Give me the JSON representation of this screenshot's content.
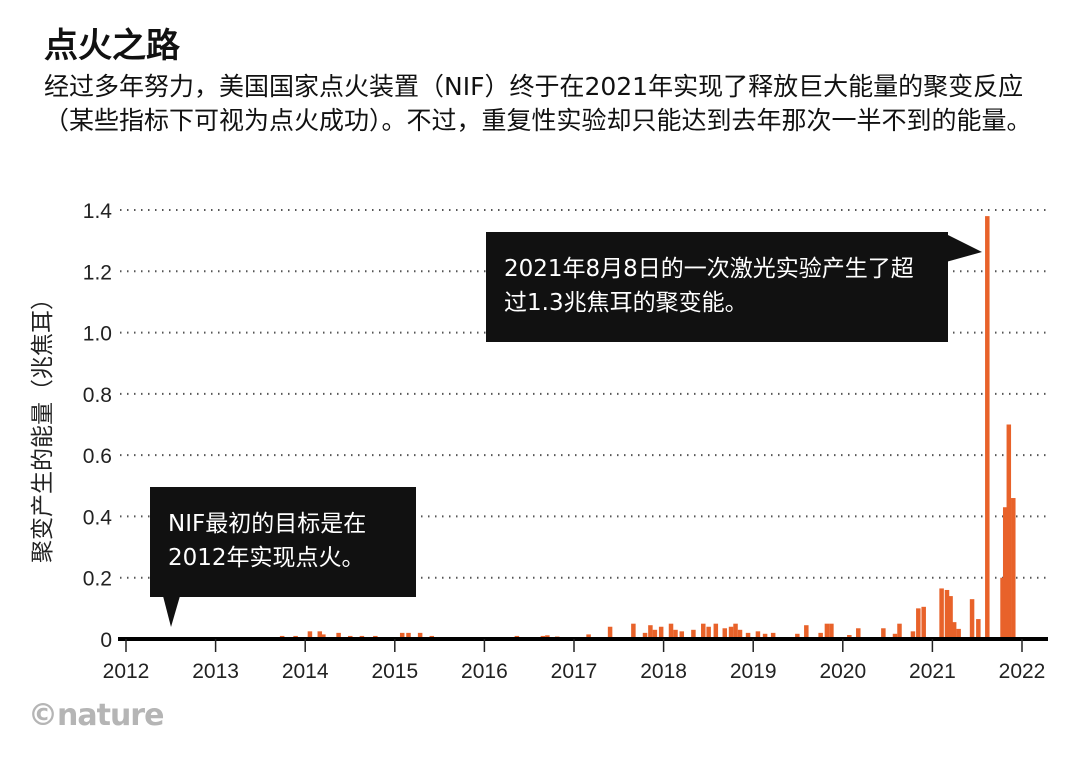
{
  "title": "点火之路",
  "subtitle": "经过多年努力，美国国家点火装置（NIF）终于在2021年实现了释放巨大能量的聚变反应（某些指标下可视为点火成功）。不过，重复性实验却只能达到去年那次一半不到的能量。",
  "logo": "©nature",
  "colors": {
    "bar": "#e8622a",
    "callout": "#111111",
    "grid": "#555555"
  },
  "chart_data": {
    "type": "bar",
    "title": "点火之路",
    "xlabel": "",
    "ylabel": "聚变产生的能量（兆焦耳）",
    "xlim": [
      2012,
      2022.3
    ],
    "ylim": [
      0,
      1.4
    ],
    "grid": "horizontal dotted",
    "x_ticks": [
      "2012",
      "2013",
      "2014",
      "2015",
      "2016",
      "2017",
      "2018",
      "2019",
      "2020",
      "2021",
      "2022"
    ],
    "y_ticks": [
      "0",
      "0.2",
      "0.4",
      "0.6",
      "0.8",
      "1.0",
      "1.2",
      "1.4"
    ],
    "x": [
      2013.74,
      2013.89,
      2014.05,
      2014.16,
      2014.2,
      2014.37,
      2014.5,
      2014.63,
      2014.78,
      2015.08,
      2015.15,
      2015.28,
      2015.41,
      2016.36,
      2016.65,
      2016.7,
      2016.81,
      2017.16,
      2017.4,
      2017.66,
      2017.79,
      2017.85,
      2017.9,
      2017.97,
      2018.08,
      2018.13,
      2018.2,
      2018.33,
      2018.44,
      2018.5,
      2018.58,
      2018.68,
      2018.75,
      2018.8,
      2018.85,
      2018.94,
      2019.05,
      2019.13,
      2019.22,
      2019.49,
      2019.59,
      2019.75,
      2019.82,
      2019.87,
      2020.07,
      2020.17,
      2020.45,
      2020.58,
      2020.63,
      2020.78,
      2020.84,
      2020.9,
      2021.1,
      2021.16,
      2021.2,
      2021.24,
      2021.29,
      2021.44,
      2021.51,
      2021.61,
      2021.78,
      2021.81,
      2021.85,
      2021.9
    ],
    "values": [
      0.01,
      0.01,
      0.025,
      0.025,
      0.015,
      0.02,
      0.01,
      0.01,
      0.01,
      0.02,
      0.02,
      0.02,
      0.01,
      0.01,
      0.01,
      0.012,
      0.008,
      0.015,
      0.04,
      0.05,
      0.02,
      0.045,
      0.03,
      0.04,
      0.05,
      0.03,
      0.025,
      0.03,
      0.05,
      0.04,
      0.05,
      0.035,
      0.04,
      0.05,
      0.03,
      0.02,
      0.025,
      0.017,
      0.02,
      0.017,
      0.045,
      0.02,
      0.05,
      0.05,
      0.013,
      0.035,
      0.035,
      0.017,
      0.05,
      0.025,
      0.1,
      0.105,
      0.165,
      0.16,
      0.14,
      0.055,
      0.033,
      0.13,
      0.065,
      1.38,
      0.2,
      0.43,
      0.7,
      0.46
    ],
    "annotations": [
      {
        "text": "2021年8月8日的一次激光实验产生了超过1.3兆焦耳的聚变能。"
      },
      {
        "text": "NIF最初的目标是在2012年实现点火。"
      }
    ]
  }
}
